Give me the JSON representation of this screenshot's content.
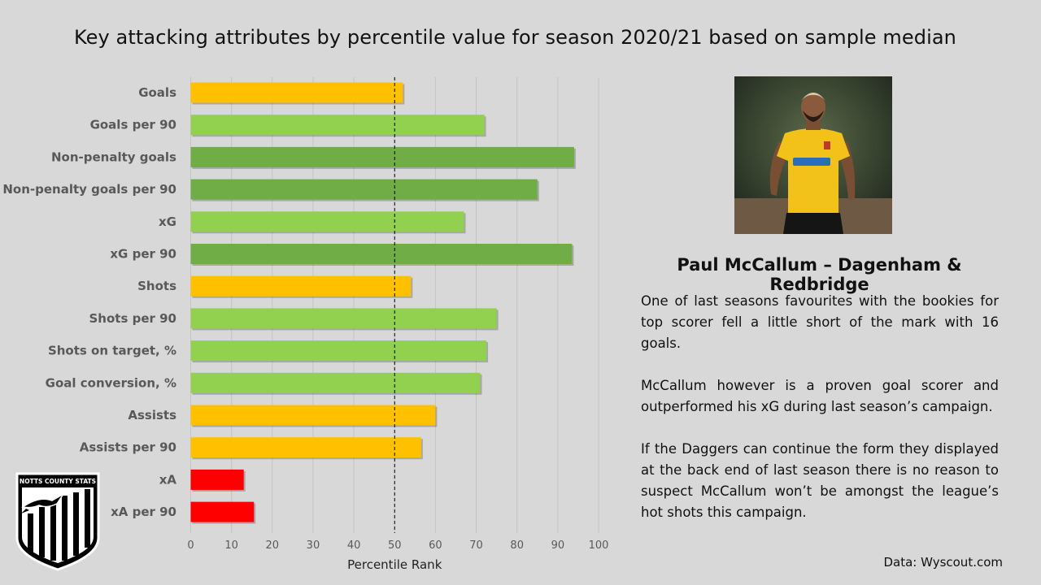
{
  "title": "Key attacking attributes by percentile value for season 2020/21 based on sample median",
  "chart_data": {
    "type": "bar",
    "orientation": "horizontal",
    "categories": [
      "Goals",
      "Goals per 90",
      "Non-penalty goals",
      "Non-penalty goals per 90",
      "xG",
      "xG per 90",
      "Shots",
      "Shots per 90",
      "Shots on target, %",
      "Goal conversion, %",
      "Assists",
      "Assists per 90",
      "xA",
      "xA per 90"
    ],
    "values": [
      52,
      72,
      94,
      85,
      67,
      93.5,
      54,
      75,
      72.5,
      71,
      60,
      56.5,
      13,
      15.5
    ],
    "colors": [
      "#ffc000",
      "#92d050",
      "#70ad47",
      "#70ad47",
      "#92d050",
      "#70ad47",
      "#ffc000",
      "#92d050",
      "#92d050",
      "#92d050",
      "#ffc000",
      "#ffc000",
      "#ff0000",
      "#ff0000"
    ],
    "xlabel": "Percentile Rank",
    "xlim": [
      0,
      100
    ],
    "xticks": [
      "0",
      "10",
      "20",
      "30",
      "40",
      "50",
      "60",
      "70",
      "80",
      "90",
      "100"
    ],
    "median_line": 50,
    "grid": true
  },
  "player": {
    "name": "Paul McCallum – Dagenham & Redbridge",
    "paragraphs": [
      "One of last seasons favourites with the bookies for top scorer fell a little short of the mark with 16 goals.",
      "McCallum however is a proven goal scorer and outperformed his xG during last season’s campaign.",
      "If the Daggers can continue the form they displayed at the back end of last season there is no reason to suspect McCallum won’t be amongst the league’s hot shots this campaign."
    ]
  },
  "source": "Data: Wyscout.com",
  "logo": {
    "text": "NOTTS COUNTY STATS",
    "icon": "magpie-shield-logo"
  }
}
